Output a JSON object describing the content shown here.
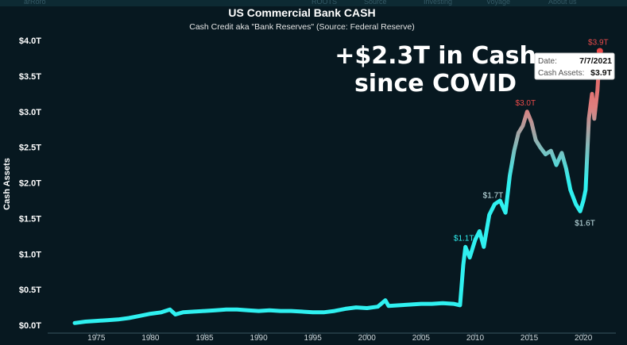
{
  "chart_data": {
    "type": "line",
    "title": "US Commercial Bank CASH",
    "subtitle": "Cash Credit aka \"Bank Reserves\" (Source: Federal Reserve)",
    "xlabel": "",
    "ylabel": "Cash Assets",
    "xlim": [
      1970.5,
      2023.0
    ],
    "ylim": [
      0,
      4.0
    ],
    "x_ticks": [
      1975,
      1980,
      1985,
      1990,
      1995,
      2000,
      2005,
      2010,
      2015,
      2020
    ],
    "y_ticks": [
      {
        "value": 0.0,
        "label": "$0.0T"
      },
      {
        "value": 0.5,
        "label": "$0.5T"
      },
      {
        "value": 1.0,
        "label": "$1.0T"
      },
      {
        "value": 1.5,
        "label": "$1.5T"
      },
      {
        "value": 2.0,
        "label": "$2.0T"
      },
      {
        "value": 2.5,
        "label": "$2.5T"
      },
      {
        "value": 3.0,
        "label": "$3.0T"
      },
      {
        "value": 3.5,
        "label": "$3.5T"
      },
      {
        "value": 4.0,
        "label": "$4.0T"
      }
    ],
    "grid": false,
    "color_low": "#2ff0f0",
    "color_high": "#e84a4a",
    "series": [
      {
        "x": [
          1973.0,
          1974.0,
          1975.0,
          1976.0,
          1977.0,
          1978.0,
          1979.0,
          1980.0,
          1981.0,
          1981.8,
          1982.3,
          1983.0,
          1984.0,
          1985.0,
          1986.0,
          1987.0,
          1988.0,
          1989.0,
          1990.0,
          1991.0,
          1992.0,
          1993.0,
          1994.0,
          1995.0,
          1996.0,
          1997.0,
          1998.0,
          1999.0,
          2000.0,
          2001.0,
          2001.7,
          2002.0,
          2003.0,
          2004.0,
          2005.0,
          2006.0,
          2007.0,
          2008.0,
          2008.6,
          2008.9,
          2009.1,
          2009.5,
          2010.0,
          2010.4,
          2010.8,
          2011.3,
          2011.8,
          2012.3,
          2012.8,
          2013.2,
          2013.6,
          2014.0,
          2014.4,
          2014.8,
          2015.2,
          2015.6,
          2016.0,
          2016.5,
          2017.0,
          2017.5,
          2018.0,
          2018.4,
          2018.8,
          2019.3,
          2019.7,
          2020.0,
          2020.2,
          2020.5,
          2020.8,
          2021.0,
          2021.3,
          2021.52
        ],
        "values": [
          0.03,
          0.05,
          0.06,
          0.07,
          0.08,
          0.1,
          0.13,
          0.16,
          0.18,
          0.22,
          0.15,
          0.18,
          0.19,
          0.2,
          0.21,
          0.22,
          0.22,
          0.21,
          0.2,
          0.21,
          0.2,
          0.2,
          0.19,
          0.18,
          0.18,
          0.2,
          0.23,
          0.25,
          0.24,
          0.26,
          0.35,
          0.27,
          0.28,
          0.29,
          0.3,
          0.3,
          0.31,
          0.3,
          0.28,
          0.85,
          1.1,
          0.95,
          1.2,
          1.32,
          1.1,
          1.55,
          1.7,
          1.75,
          1.58,
          2.1,
          2.45,
          2.7,
          2.8,
          3.0,
          2.85,
          2.6,
          2.5,
          2.4,
          2.45,
          2.25,
          2.42,
          2.2,
          1.9,
          1.7,
          1.6,
          1.75,
          1.9,
          2.9,
          3.25,
          2.9,
          3.3,
          3.85
        ]
      }
    ],
    "point_labels": [
      {
        "x": 2009.1,
        "y": 1.1,
        "label": "$1.1T",
        "position": "above"
      },
      {
        "x": 2011.8,
        "y": 1.7,
        "label": "$1.7T",
        "position": "above"
      },
      {
        "x": 2014.8,
        "y": 3.0,
        "label": "$3.0T",
        "position": "above"
      },
      {
        "x": 2019.7,
        "y": 1.6,
        "label": "$1.6T",
        "position": "below"
      },
      {
        "x": 2021.52,
        "y": 3.85,
        "label": "$3.9T",
        "position": "above"
      }
    ],
    "annotation": {
      "line1": "+$2.3T in Cash",
      "line2": "since COVID"
    },
    "tooltip": {
      "date_label": "Date:",
      "date_value": "7/7/2021",
      "assets_label": "Cash Assets:",
      "assets_value": "$3.9T"
    },
    "top_strip": {
      "items": [
        "arRoro",
        "ROOTS",
        "Source",
        "Investing",
        "Voyage",
        "About us"
      ]
    }
  }
}
